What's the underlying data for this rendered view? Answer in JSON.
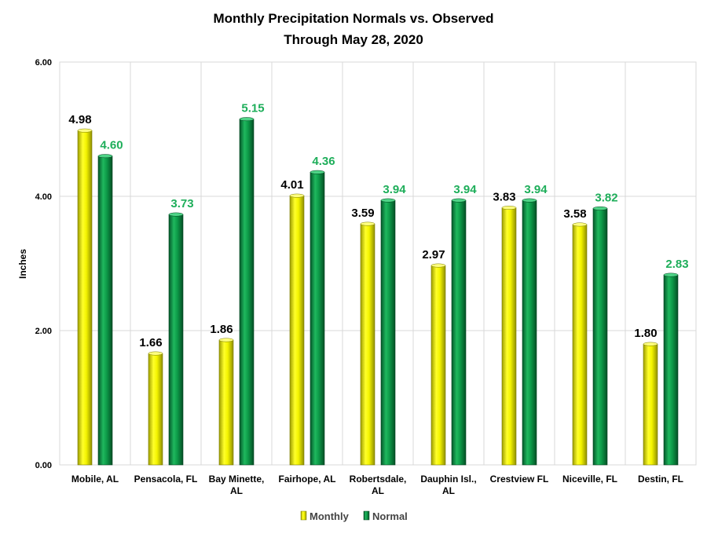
{
  "chart_data": {
    "type": "bar",
    "title_line1": "Monthly Precipitation  Normals vs. Observed",
    "title_line2": "Through  May 28, 2020",
    "xlabel": "",
    "ylabel": "Inches",
    "ylim": [
      0,
      6
    ],
    "yticks": [
      "0.00",
      "2.00",
      "4.00",
      "6.00"
    ],
    "grid": true,
    "legend_position": "bottom",
    "categories": [
      [
        "Mobile, AL"
      ],
      [
        "Pensacola, FL"
      ],
      [
        "Bay Minette,",
        "AL"
      ],
      [
        "Fairhope, AL"
      ],
      [
        "Robertsdale,",
        "AL"
      ],
      [
        "Dauphin Isl.,",
        "AL"
      ],
      [
        "Crestview FL"
      ],
      [
        "Niceville, FL"
      ],
      [
        "Destin, FL"
      ]
    ],
    "series": [
      {
        "name": "Monthly",
        "color": "#f2f200",
        "values": [
          4.98,
          1.66,
          1.86,
          4.01,
          3.59,
          2.97,
          3.83,
          3.58,
          1.8
        ],
        "labels": [
          "4.98",
          "1.66",
          "1.86",
          "4.01",
          "3.59",
          "2.97",
          "3.83",
          "3.58",
          "1.80"
        ]
      },
      {
        "name": "Normal",
        "color": "#0f9a45",
        "values": [
          4.6,
          3.73,
          5.15,
          4.36,
          3.94,
          3.94,
          3.94,
          3.82,
          2.83
        ],
        "labels": [
          "4.60",
          "3.73",
          "5.15",
          "4.36",
          "3.94",
          "3.94",
          "3.94",
          "3.82",
          "2.83"
        ]
      }
    ]
  }
}
